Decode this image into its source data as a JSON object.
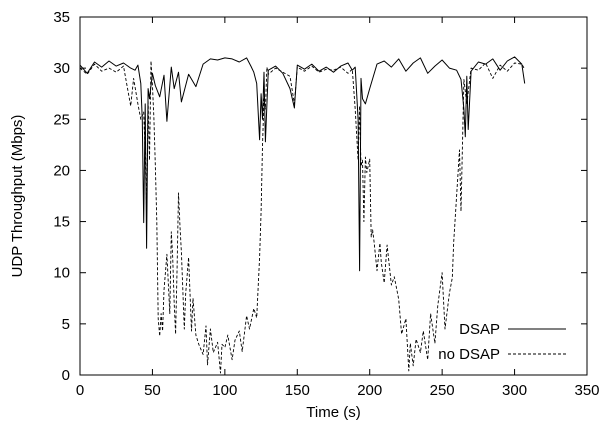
{
  "chart_data": {
    "type": "line",
    "title": "",
    "xlabel": "Time (s)",
    "ylabel": "UDP Throughput (Mbps)",
    "xlim": [
      0,
      350
    ],
    "ylim": [
      0,
      35
    ],
    "xticks": [
      0,
      50,
      100,
      150,
      200,
      250,
      300,
      350
    ],
    "yticks": [
      0,
      5,
      10,
      15,
      20,
      25,
      30,
      35
    ],
    "grid": false,
    "legend_position": "bottom-right",
    "series": [
      {
        "name": "DSAP",
        "style": "solid",
        "x": [
          0,
          5,
          10,
          15,
          20,
          25,
          30,
          35,
          38,
          40,
          42,
          43,
          44,
          45,
          46,
          47,
          48,
          50,
          52,
          55,
          58,
          60,
          63,
          65,
          68,
          70,
          75,
          80,
          85,
          90,
          95,
          100,
          105,
          110,
          115,
          118,
          120,
          122,
          124,
          125,
          126,
          127,
          128,
          130,
          135,
          140,
          145,
          148,
          150,
          155,
          160,
          165,
          170,
          175,
          180,
          185,
          188,
          190,
          192,
          193,
          194,
          195,
          197,
          200,
          205,
          210,
          215,
          220,
          225,
          230,
          235,
          240,
          245,
          250,
          255,
          260,
          263,
          265,
          266,
          267,
          268,
          270,
          275,
          280,
          285,
          290,
          295,
          300,
          305,
          307
        ],
        "values": [
          30.3,
          29.5,
          30.6,
          30.1,
          30.7,
          30.2,
          30.5,
          30.0,
          29.8,
          30.3,
          28.5,
          24.9,
          14.9,
          26.5,
          12.4,
          28.0,
          27.0,
          29.5,
          28.3,
          27.2,
          29.3,
          24.8,
          30.1,
          28.0,
          29.6,
          26.7,
          29.4,
          28.2,
          30.4,
          30.9,
          30.8,
          31.0,
          30.9,
          30.6,
          31.0,
          30.2,
          29.6,
          28.5,
          23.0,
          27.5,
          25.0,
          29.6,
          22.8,
          29.8,
          30.2,
          29.5,
          28.0,
          26.1,
          30.3,
          29.9,
          30.4,
          29.7,
          30.1,
          29.6,
          30.2,
          30.5,
          29.8,
          30.1,
          25.0,
          10.2,
          29.0,
          27.0,
          26.5,
          28.0,
          30.4,
          30.7,
          30.1,
          30.9,
          29.7,
          30.5,
          31.0,
          29.5,
          30.2,
          30.8,
          30.0,
          29.8,
          28.9,
          26.0,
          23.3,
          29.2,
          24.0,
          29.7,
          30.6,
          30.4,
          30.9,
          29.8,
          30.7,
          31.1,
          30.4,
          28.5
        ]
      },
      {
        "name": "no DSAP",
        "style": "dashed",
        "x": [
          0,
          5,
          10,
          15,
          20,
          25,
          30,
          35,
          37,
          40,
          42,
          44,
          45,
          46,
          47,
          48,
          49,
          50,
          51,
          52,
          53,
          54,
          55,
          56,
          57,
          58,
          60,
          62,
          63,
          64,
          65,
          66,
          67,
          68,
          69,
          70,
          72,
          73,
          75,
          77,
          78,
          80,
          82,
          85,
          87,
          88,
          90,
          92,
          95,
          97,
          98,
          100,
          102,
          105,
          107,
          110,
          112,
          115,
          117,
          120,
          122,
          124,
          125,
          126,
          127,
          128,
          129,
          130,
          135,
          140,
          145,
          148,
          150,
          155,
          160,
          165,
          170,
          175,
          180,
          185,
          188,
          190,
          192,
          193,
          194,
          195,
          196,
          197,
          198,
          200,
          201,
          202,
          203,
          205,
          207,
          208,
          210,
          212,
          215,
          217,
          220,
          222,
          225,
          227,
          228,
          230,
          232,
          235,
          237,
          240,
          242,
          245,
          247,
          250,
          252,
          255,
          257,
          258,
          260,
          262,
          263,
          265,
          267,
          270,
          275,
          280,
          285,
          290,
          295,
          300,
          305,
          307
        ],
        "values": [
          30.0,
          29.4,
          30.4,
          29.7,
          30.0,
          29.6,
          30.2,
          26.3,
          29.0,
          26.5,
          25.0,
          25.7,
          21.5,
          16.0,
          26.8,
          21.0,
          30.7,
          28.4,
          25.1,
          20.6,
          15.0,
          5.5,
          3.8,
          6.0,
          4.3,
          8.3,
          11.8,
          6.0,
          14.0,
          11.5,
          7.0,
          4.0,
          10.5,
          17.8,
          14.5,
          12.0,
          4.5,
          8.0,
          11.5,
          4.3,
          7.5,
          3.9,
          3.0,
          2.0,
          4.8,
          1.0,
          4.5,
          2.2,
          3.2,
          0.2,
          3.0,
          2.7,
          3.9,
          1.5,
          3.4,
          4.3,
          2.3,
          5.8,
          4.5,
          6.5,
          5.6,
          11.5,
          16.0,
          22.4,
          27.0,
          26.0,
          30.1,
          29.4,
          30.0,
          29.6,
          29.2,
          26.5,
          30.1,
          29.7,
          30.2,
          29.6,
          29.9,
          29.8,
          30.1,
          29.5,
          29.9,
          26.0,
          21.0,
          26.3,
          20.4,
          21.0,
          15.0,
          21.3,
          19.8,
          21.1,
          13.5,
          14.2,
          13.0,
          10.2,
          12.9,
          11.0,
          9.0,
          12.7,
          8.8,
          9.6,
          7.4,
          4.0,
          5.5,
          0.4,
          3.1,
          0.9,
          3.5,
          2.2,
          4.3,
          1.5,
          6.0,
          3.1,
          6.8,
          10.0,
          4.5,
          8.0,
          9.5,
          13.0,
          17.5,
          22.0,
          16.0,
          28.9,
          26.5,
          30.0,
          29.8,
          30.5,
          29.0,
          30.3,
          29.7,
          30.5,
          30.4,
          29.9
        ]
      }
    ]
  }
}
